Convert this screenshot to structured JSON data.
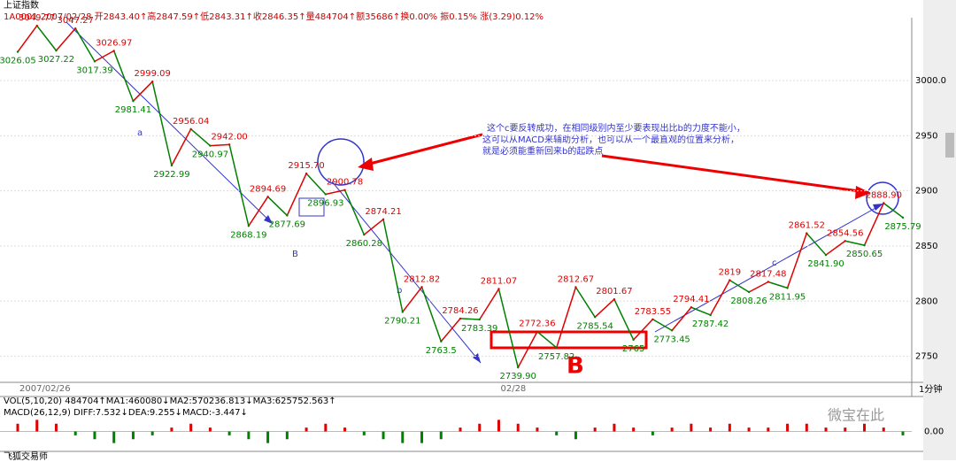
{
  "chart_data": {
    "type": "line",
    "title": "上证指数",
    "header": "1A0001 2007/02/28 开2843.40↑高2847.59↑低2843.31↑收2846.35↑量484704↑额35686↑换0.00% 振0.15% 涨(3.29)0.12%",
    "categories": [
      "2007/02/26",
      null,
      null,
      null,
      null,
      null,
      null,
      null,
      null,
      null,
      null,
      null,
      null,
      null,
      null,
      null,
      null,
      null,
      null,
      null,
      null,
      null,
      null,
      null,
      null,
      "02/28",
      null,
      null,
      null,
      null,
      null,
      null,
      null,
      null,
      null,
      null,
      null,
      null,
      null,
      null,
      null,
      null,
      null,
      null,
      null,
      null,
      null
    ],
    "values": [
      3026.05,
      3049.77,
      3027.22,
      3047.27,
      3017.39,
      3026.97,
      2981.41,
      2999.09,
      2922.99,
      2956.04,
      2940.97,
      2942.0,
      2868.19,
      2894.69,
      2877.69,
      2915.7,
      2896.93,
      2900.78,
      2860.28,
      2874.21,
      2790.21,
      2812.82,
      2763.5,
      2784.26,
      2783.39,
      2811.07,
      2739.9,
      2772.36,
      2757.82,
      2812.67,
      2785.54,
      2801.67,
      2765,
      2783.55,
      2773.45,
      2794.41,
      2787.42,
      2819,
      2808.26,
      2817.48,
      2811.95,
      2861.52,
      2841.9,
      2854.56,
      2850.65,
      2888.9,
      2875.79
    ],
    "value_labels": [
      "3026.05",
      "3049.77",
      "3027.22",
      "3047.27",
      "3017.39",
      "3026.97",
      "2981.41",
      "2999.09",
      "2922.99",
      "2956.04",
      "2940.97",
      "2942.00",
      "2868.19",
      "2894.69",
      "2877.69",
      "2915.70",
      "2896.93",
      "2900.78",
      "2860.28",
      "2874.21",
      "2790.21",
      "2812.82",
      "2763.5",
      "2784.26",
      "2783.39",
      "2811.07",
      "2739.90",
      "2772.36",
      "2757.82",
      "2812.67",
      "2785.54",
      "2801.67",
      "2765",
      "2783.55",
      "2773.45",
      "2794.41",
      "2787.42",
      "2819",
      "2808.26",
      "2817.48",
      "2811.95",
      "2861.52",
      "2841.90",
      "2854.56",
      "2850.65",
      "2888.90",
      "2875.79"
    ],
    "up_color": "#e00000",
    "down_color": "#008000",
    "grid": true,
    "ylim": [
      2728,
      3053
    ],
    "yticks": [
      {
        "value": 3000,
        "label": "3000.0"
      },
      2950,
      2900,
      2850,
      2800,
      2750
    ],
    "annotations": {
      "a": "a",
      "B_small": "B",
      "b": "b",
      "c": "c",
      "B_big": "B",
      "note": [
        "这个c要反转成功，在相同级别内至少要表现出比b的力度不能小，",
        "这可以从MACD来辅助分析，也可以从一个最直观的位置来分析，",
        "就是必须能重新回来b的起跌点"
      ]
    },
    "period": "1分钟",
    "vol_legend": "VOL(5,10,20) 484704↑MA1:460080↓MA2:570236.813↓MA3:625752.563↑",
    "macd_legend": "MACD(26,12,9) DIFF:7.532↓DEA:9.255↓MACD:-3.447↓",
    "macd": {
      "values": [
        2,
        3,
        2,
        -1,
        -2,
        -3,
        -2,
        -1,
        1,
        2,
        1,
        -1,
        -2,
        -3,
        -2,
        1,
        2,
        1,
        -1,
        -2,
        -3,
        -3,
        -2,
        1,
        2,
        3,
        2,
        1,
        -1,
        -2,
        1,
        2,
        1,
        -1,
        1,
        2,
        1,
        2,
        1,
        1,
        2,
        2,
        1,
        1,
        2,
        1,
        -1
      ],
      "ylim": [
        -4,
        4
      ],
      "yticks": [
        {
          "value": 0,
          "label": "0.00"
        }
      ]
    },
    "footer": "飞狐交易师",
    "watermark": "微宝在此"
  }
}
